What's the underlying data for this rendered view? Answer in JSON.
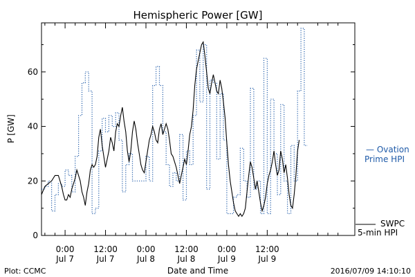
{
  "chart_data": {
    "type": "line",
    "title": "Hemispheric Power [GW]",
    "xlabel": "Date and Time",
    "ylabel": "P [GW]",
    "x_unit": "hours since 2016-07-06 00:00 UTC",
    "xlim": [
      17,
      110
    ],
    "ylim": [
      0,
      78
    ],
    "yticks": [
      0,
      20,
      40,
      60
    ],
    "xticks": [
      {
        "x": 24,
        "time": "0:00",
        "day": "Jul 7"
      },
      {
        "x": 36,
        "time": "12:00",
        "day": "Jul 7"
      },
      {
        "x": 48,
        "time": "0:00",
        "day": "Jul 8"
      },
      {
        "x": 60,
        "time": "12:00",
        "day": "Jul 8"
      },
      {
        "x": 72,
        "time": "0:00",
        "day": "Jul 9"
      },
      {
        "x": 84,
        "time": "12:00",
        "day": "Jul 9"
      }
    ],
    "grid": false,
    "series": [
      {
        "name": "Ovation Prime HPI",
        "color": "#1e5aa8",
        "style": "dotted-step",
        "legend": [
          "— Ovation",
          "Prime HPI"
        ],
        "points": [
          [
            17,
            17
          ],
          [
            18,
            18
          ],
          [
            19,
            20
          ],
          [
            20,
            9
          ],
          [
            21,
            15
          ],
          [
            22,
            19
          ],
          [
            23,
            18
          ],
          [
            24,
            24
          ],
          [
            25,
            22
          ],
          [
            26,
            16
          ],
          [
            27,
            29
          ],
          [
            28,
            44
          ],
          [
            29,
            56
          ],
          [
            30,
            60
          ],
          [
            31,
            53
          ],
          [
            32,
            8
          ],
          [
            33,
            10
          ],
          [
            34,
            31
          ],
          [
            35,
            43
          ],
          [
            36,
            38
          ],
          [
            37,
            44
          ],
          [
            38,
            40
          ],
          [
            39,
            45
          ],
          [
            40,
            35
          ],
          [
            41,
            16
          ],
          [
            42,
            26
          ],
          [
            43,
            30
          ],
          [
            44,
            20
          ],
          [
            45,
            20
          ],
          [
            46,
            20
          ],
          [
            47,
            20
          ],
          [
            48,
            29
          ],
          [
            49,
            20
          ],
          [
            50,
            55
          ],
          [
            51,
            62
          ],
          [
            52,
            55
          ],
          [
            53,
            38
          ],
          [
            54,
            26
          ],
          [
            55,
            18
          ],
          [
            56,
            23
          ],
          [
            57,
            20
          ],
          [
            58,
            37
          ],
          [
            59,
            13
          ],
          [
            60,
            31
          ],
          [
            61,
            26
          ],
          [
            62,
            44
          ],
          [
            63,
            68
          ],
          [
            64,
            49
          ],
          [
            65,
            70
          ],
          [
            66,
            17
          ],
          [
            67,
            57
          ],
          [
            68,
            56
          ],
          [
            69,
            28
          ],
          [
            70,
            52
          ],
          [
            71,
            35
          ],
          [
            72,
            8
          ],
          [
            73,
            8
          ],
          [
            74,
            14
          ],
          [
            75,
            15
          ],
          [
            76,
            32
          ],
          [
            77,
            20
          ],
          [
            78,
            14
          ],
          [
            79,
            54
          ],
          [
            80,
            17
          ],
          [
            81,
            20
          ],
          [
            82,
            8
          ],
          [
            83,
            65
          ],
          [
            84,
            8
          ],
          [
            85,
            50
          ],
          [
            86,
            30
          ],
          [
            87,
            15
          ],
          [
            88,
            48
          ],
          [
            89,
            20
          ],
          [
            90,
            8
          ],
          [
            91,
            33
          ],
          [
            92,
            20
          ],
          [
            93,
            53
          ],
          [
            94,
            76
          ],
          [
            95,
            33
          ]
        ]
      },
      {
        "name": "SWPC 5-min HPI",
        "color": "#000000",
        "style": "solid",
        "legend": [
          "SWPC",
          "5-min HPI"
        ],
        "points": [
          [
            17,
            15
          ],
          [
            18,
            18
          ],
          [
            19,
            19
          ],
          [
            20,
            20
          ],
          [
            21,
            22
          ],
          [
            22,
            22
          ],
          [
            23,
            18
          ],
          [
            23.5,
            15
          ],
          [
            24,
            13
          ],
          [
            24.5,
            13
          ],
          [
            25,
            15
          ],
          [
            25.5,
            14
          ],
          [
            26,
            17
          ],
          [
            27,
            21
          ],
          [
            27.5,
            24
          ],
          [
            28,
            22
          ],
          [
            28.5,
            20
          ],
          [
            29,
            16
          ],
          [
            29.5,
            14
          ],
          [
            30,
            11
          ],
          [
            30.5,
            16
          ],
          [
            31,
            19
          ],
          [
            31.5,
            24
          ],
          [
            32,
            26
          ],
          [
            32.5,
            25
          ],
          [
            33,
            26
          ],
          [
            33.5,
            29
          ],
          [
            34,
            36
          ],
          [
            34.5,
            39
          ],
          [
            35,
            33
          ],
          [
            35.5,
            29
          ],
          [
            36,
            25
          ],
          [
            36.5,
            28
          ],
          [
            37,
            31
          ],
          [
            37.5,
            36
          ],
          [
            38,
            34
          ],
          [
            38.5,
            31
          ],
          [
            39,
            38
          ],
          [
            39.5,
            41
          ],
          [
            40,
            40
          ],
          [
            40.5,
            44
          ],
          [
            41,
            47
          ],
          [
            41.5,
            42
          ],
          [
            42,
            38
          ],
          [
            42.5,
            31
          ],
          [
            43,
            27
          ],
          [
            43.5,
            31
          ],
          [
            44,
            38
          ],
          [
            44.5,
            42
          ],
          [
            45,
            39
          ],
          [
            45.5,
            34
          ],
          [
            46,
            30
          ],
          [
            46.5,
            26
          ],
          [
            47,
            24
          ],
          [
            47.5,
            23
          ],
          [
            48,
            27
          ],
          [
            48.5,
            31
          ],
          [
            49,
            35
          ],
          [
            49.5,
            37
          ],
          [
            50,
            40
          ],
          [
            50.5,
            38
          ],
          [
            51,
            35
          ],
          [
            51.5,
            34
          ],
          [
            52,
            39
          ],
          [
            52.5,
            41
          ],
          [
            53,
            37
          ],
          [
            53.5,
            39
          ],
          [
            54,
            41
          ],
          [
            54.5,
            39
          ],
          [
            55,
            35
          ],
          [
            55.5,
            30
          ],
          [
            56,
            29
          ],
          [
            56.5,
            27
          ],
          [
            57,
            25
          ],
          [
            57.5,
            22
          ],
          [
            58,
            19
          ],
          [
            58.5,
            22
          ],
          [
            59,
            25
          ],
          [
            59.5,
            28
          ],
          [
            60,
            26
          ],
          [
            60.5,
            31
          ],
          [
            61,
            37
          ],
          [
            61.5,
            40
          ],
          [
            62,
            46
          ],
          [
            62.5,
            55
          ],
          [
            63,
            61
          ],
          [
            63.5,
            64
          ],
          [
            64,
            67
          ],
          [
            64.5,
            70
          ],
          [
            65,
            71
          ],
          [
            65.5,
            66
          ],
          [
            66,
            60
          ],
          [
            66.5,
            54
          ],
          [
            67,
            52
          ],
          [
            67.5,
            56
          ],
          [
            68,
            59
          ],
          [
            68.5,
            56
          ],
          [
            69,
            53
          ],
          [
            69.5,
            52
          ],
          [
            70,
            57
          ],
          [
            70.5,
            54
          ],
          [
            71,
            49
          ],
          [
            71.5,
            43
          ],
          [
            72,
            34
          ],
          [
            72.5,
            26
          ],
          [
            73,
            20
          ],
          [
            73.5,
            16
          ],
          [
            74,
            12
          ],
          [
            74.5,
            9
          ],
          [
            75,
            8
          ],
          [
            75.5,
            7
          ],
          [
            76,
            8
          ],
          [
            76.5,
            7
          ],
          [
            77,
            8
          ],
          [
            77.5,
            10
          ],
          [
            78,
            16
          ],
          [
            78.5,
            22
          ],
          [
            79,
            27
          ],
          [
            79.5,
            25
          ],
          [
            80,
            21
          ],
          [
            80.5,
            17
          ],
          [
            81,
            20
          ],
          [
            81.5,
            16
          ],
          [
            82,
            12
          ],
          [
            82.5,
            9
          ],
          [
            83,
            11
          ],
          [
            83.5,
            14
          ],
          [
            84,
            19
          ],
          [
            84.5,
            22
          ],
          [
            85,
            24
          ],
          [
            85.5,
            27
          ],
          [
            86,
            31
          ],
          [
            86.5,
            26
          ],
          [
            87,
            22
          ],
          [
            87.5,
            24
          ],
          [
            88,
            31
          ],
          [
            88.5,
            28
          ],
          [
            89,
            23
          ],
          [
            89.5,
            26
          ],
          [
            90,
            21
          ],
          [
            90.5,
            15
          ],
          [
            91,
            11
          ],
          [
            91.5,
            10
          ],
          [
            92,
            15
          ],
          [
            92.5,
            22
          ],
          [
            93,
            31
          ],
          [
            93.5,
            35
          ]
        ]
      }
    ]
  },
  "footer": {
    "plot_label": "Plot: CCMC",
    "timestamp": "2016/07/09 14:10:10"
  }
}
